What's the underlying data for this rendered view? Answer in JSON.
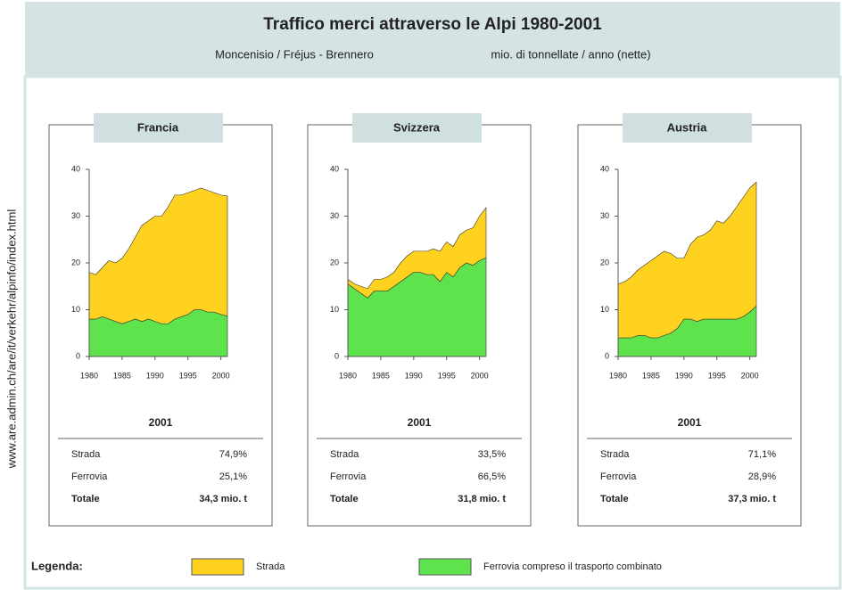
{
  "header": {
    "title": "Traffico merci attraverso le Alpi 1980-2001",
    "subtitle_left": "Moncenisio / Fréjus - Brennero",
    "subtitle_right": "mio. di tonnellate / anno (nette)"
  },
  "source": "www.are.admin.ch/are/it/verkehr/alpinfo/index.html",
  "legend": {
    "title": "Legenda:",
    "items": [
      {
        "label": "Strada",
        "color": "#ffd21f"
      },
      {
        "label": "Ferrovia compreso il trasporto combinato",
        "color": "#5ee34c"
      }
    ]
  },
  "chart_data": [
    {
      "type": "area",
      "stacked": true,
      "title": "Francia",
      "x": [
        1980,
        1981,
        1982,
        1983,
        1984,
        1985,
        1986,
        1987,
        1988,
        1989,
        1990,
        1991,
        1992,
        1993,
        1994,
        1995,
        1996,
        1997,
        1998,
        1999,
        2000,
        2001
      ],
      "series": [
        {
          "color": "#5ee34c",
          "values": [
            8,
            8,
            8.5,
            8,
            7.5,
            7,
            7.5,
            8,
            7.5,
            8,
            7.5,
            7,
            7,
            8,
            8.5,
            9,
            10,
            10,
            9.5,
            9.5,
            9,
            8.6
          ]
        },
        {
          "color": "#ffd21f",
          "values": [
            10,
            9.5,
            10.5,
            12.5,
            12.5,
            14,
            15.5,
            17.5,
            20.5,
            21,
            22.5,
            23,
            25,
            26.5,
            26,
            26,
            25.5,
            26,
            26,
            25.5,
            25.5,
            25.7
          ]
        }
      ],
      "xlim": [
        1980,
        2001
      ],
      "xticks": [
        1980,
        1985,
        1990,
        1995,
        2000
      ],
      "ylim": [
        0,
        40
      ],
      "yticks": [
        0,
        10,
        20,
        30,
        40
      ],
      "summary": {
        "title": "2001",
        "rows": [
          [
            "Strada",
            "74,9%"
          ],
          [
            "Ferrovia",
            "25,1%"
          ],
          [
            "Totale",
            "34,3 mio. t"
          ]
        ]
      }
    },
    {
      "type": "area",
      "stacked": true,
      "title": "Svizzera",
      "x": [
        1980,
        1981,
        1982,
        1983,
        1984,
        1985,
        1986,
        1987,
        1988,
        1989,
        1990,
        1991,
        1992,
        1993,
        1994,
        1995,
        1996,
        1997,
        1998,
        1999,
        2000,
        2001
      ],
      "series": [
        {
          "color": "#5ee34c",
          "values": [
            15.5,
            14.5,
            13.5,
            12.5,
            14,
            14,
            14,
            15,
            16,
            17,
            18,
            18,
            17.5,
            17.5,
            16,
            18,
            17,
            19,
            20,
            19.5,
            20.5,
            21.1
          ]
        },
        {
          "color": "#ffd21f",
          "values": [
            1,
            1,
            1.5,
            2,
            2.5,
            2.5,
            3,
            3,
            4,
            4.5,
            4.5,
            4.5,
            5,
            5.5,
            6.5,
            6.5,
            6.5,
            7,
            7,
            8,
            9.5,
            10.7
          ]
        }
      ],
      "xlim": [
        1980,
        2001
      ],
      "xticks": [
        1980,
        1985,
        1990,
        1995,
        2000
      ],
      "ylim": [
        0,
        40
      ],
      "yticks": [
        0,
        10,
        20,
        30,
        40
      ],
      "summary": {
        "title": "2001",
        "rows": [
          [
            "Strada",
            "33,5%"
          ],
          [
            "Ferrovia",
            "66,5%"
          ],
          [
            "Totale",
            "31,8 mio. t"
          ]
        ]
      }
    },
    {
      "type": "area",
      "stacked": true,
      "title": "Austria",
      "x": [
        1980,
        1981,
        1982,
        1983,
        1984,
        1985,
        1986,
        1987,
        1988,
        1989,
        1990,
        1991,
        1992,
        1993,
        1994,
        1995,
        1996,
        1997,
        1998,
        1999,
        2000,
        2001
      ],
      "series": [
        {
          "color": "#5ee34c",
          "values": [
            4,
            4,
            4,
            4.5,
            4.5,
            4,
            4,
            4.5,
            5,
            6,
            8,
            8,
            7.5,
            8,
            8,
            8,
            8,
            8,
            8,
            8.5,
            9.5,
            10.8
          ]
        },
        {
          "color": "#ffd21f",
          "values": [
            11.5,
            12,
            13,
            14,
            15,
            16.5,
            17.5,
            18,
            17,
            15,
            13,
            16,
            18,
            18,
            19,
            21,
            20.5,
            22,
            24,
            25.5,
            26.5,
            26.5
          ]
        }
      ],
      "xlim": [
        1980,
        2001
      ],
      "xticks": [
        1980,
        1985,
        1990,
        1995,
        2000
      ],
      "ylim": [
        0,
        40
      ],
      "yticks": [
        0,
        10,
        20,
        30,
        40
      ],
      "summary": {
        "title": "2001",
        "rows": [
          [
            "Strada",
            "71,1%"
          ],
          [
            "Ferrovia",
            "28,9%"
          ],
          [
            "Totale",
            "37,3 mio. t"
          ]
        ]
      }
    }
  ]
}
